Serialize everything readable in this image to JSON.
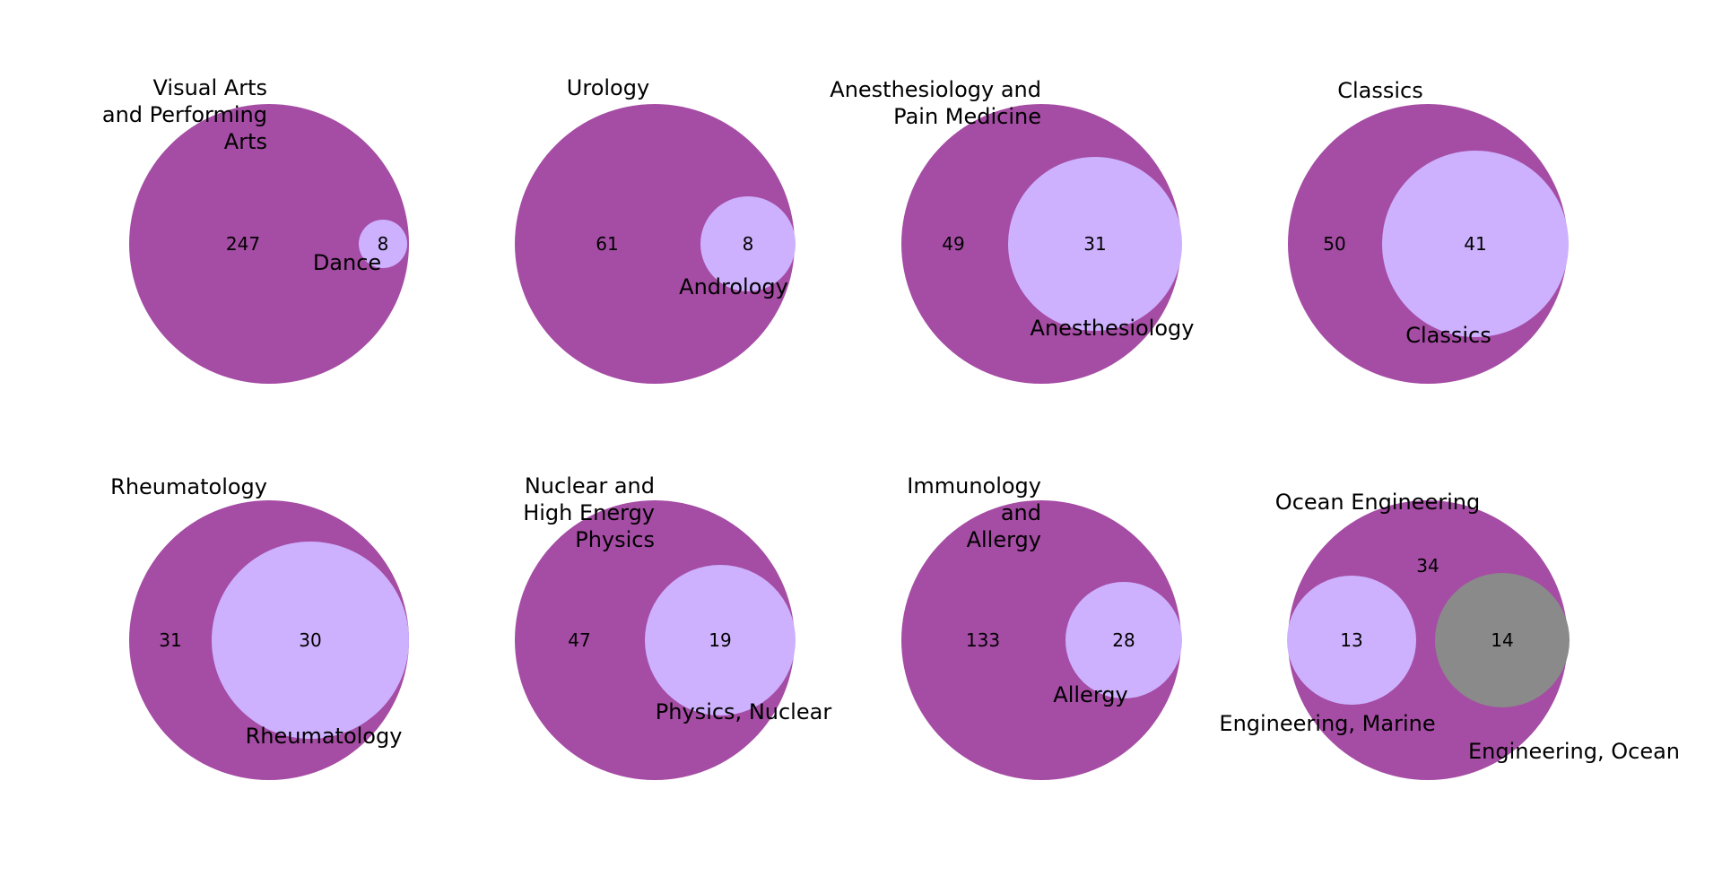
{
  "colors": {
    "background": "#ffffff",
    "outer_set": "#a54ca4",
    "inner_set": "#cdb1fe",
    "second_inner_set": "#8a8a8a",
    "text": "#000000"
  },
  "panels": [
    {
      "outer": {
        "label_lines": [
          "Visual Arts",
          "and Performing",
          "Arts"
        ],
        "only_count": "247"
      },
      "inner": [
        {
          "label_lines": [
            "Dance"
          ],
          "count": "8"
        }
      ]
    },
    {
      "outer": {
        "label_lines": [
          "Urology"
        ],
        "only_count": "61"
      },
      "inner": [
        {
          "label_lines": [
            "Andrology"
          ],
          "count": "8"
        }
      ]
    },
    {
      "outer": {
        "label_lines": [
          "Anesthesiology and",
          "Pain Medicine"
        ],
        "only_count": "49"
      },
      "inner": [
        {
          "label_lines": [
            "Anesthesiology"
          ],
          "count": "31"
        }
      ]
    },
    {
      "outer": {
        "label_lines": [
          "Classics"
        ],
        "only_count": "50"
      },
      "inner": [
        {
          "label_lines": [
            "Classics"
          ],
          "count": "41"
        }
      ]
    },
    {
      "outer": {
        "label_lines": [
          "Rheumatology"
        ],
        "only_count": "31"
      },
      "inner": [
        {
          "label_lines": [
            "Rheumatology"
          ],
          "count": "30"
        }
      ]
    },
    {
      "outer": {
        "label_lines": [
          "Nuclear and",
          "High Energy",
          "Physics"
        ],
        "only_count": "47"
      },
      "inner": [
        {
          "label_lines": [
            "Physics, Nuclear"
          ],
          "count": "19"
        }
      ]
    },
    {
      "outer": {
        "label_lines": [
          "Immunology",
          "and",
          "Allergy"
        ],
        "only_count": "133"
      },
      "inner": [
        {
          "label_lines": [
            "Allergy"
          ],
          "count": "28"
        }
      ]
    },
    {
      "outer": {
        "label_lines": [
          "Ocean Engineering"
        ],
        "only_count": "34"
      },
      "inner": [
        {
          "label_lines": [
            "Engineering, Marine"
          ],
          "count": "13"
        },
        {
          "label_lines": [
            "Engineering, Ocean"
          ],
          "count": "14"
        }
      ]
    }
  ]
}
